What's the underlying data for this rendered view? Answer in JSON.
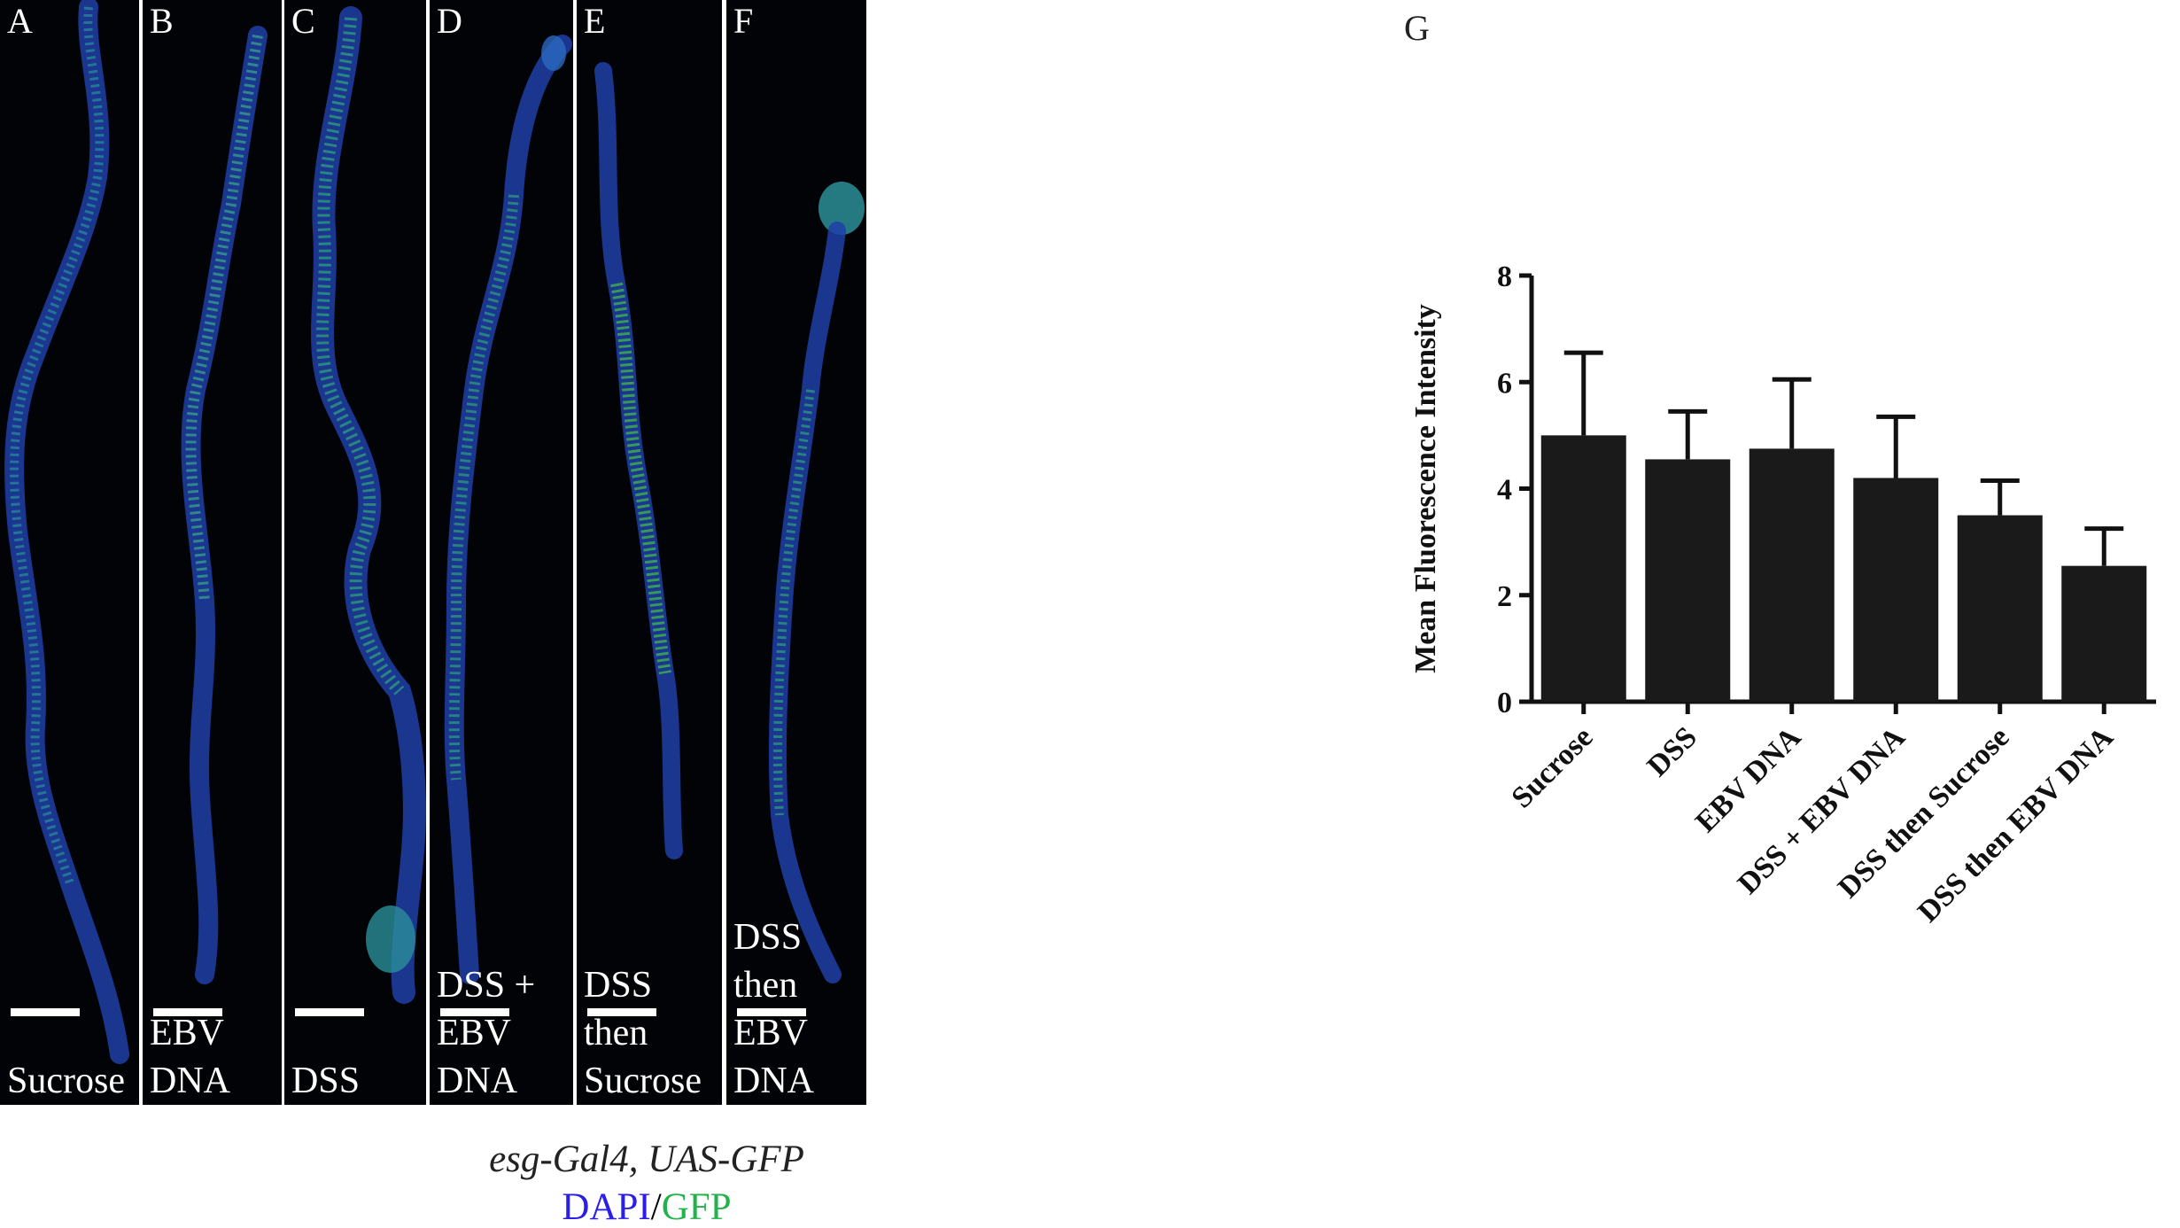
{
  "panels": [
    {
      "letter": "A",
      "label_lines": [
        "Sucrose"
      ]
    },
    {
      "letter": "B",
      "label_lines": [
        "EBV DNA"
      ]
    },
    {
      "letter": "C",
      "label_lines": [
        "DSS"
      ]
    },
    {
      "letter": "D",
      "label_lines": [
        "DSS +",
        "EBV DNA"
      ]
    },
    {
      "letter": "E",
      "label_lines": [
        "DSS then",
        "Sucrose"
      ]
    },
    {
      "letter": "F",
      "label_lines": [
        "DSS then",
        "EBV DNA"
      ]
    }
  ],
  "caption": {
    "genotype": "esg-Gal4, UAS-GFP",
    "stain_dapi": "DAPI",
    "stain_sep": "/",
    "stain_gfp": "GFP"
  },
  "colors": {
    "dapi": "#2b1ee6",
    "gfp": "#22b24a",
    "panel_bg": "#020306",
    "bar": "#1a1a1a"
  },
  "panel_g_letter": "G",
  "chart_data": {
    "type": "bar",
    "categories": [
      "Sucrose",
      "DSS",
      "EBV DNA",
      "DSS + EBV DNA",
      "DSS then Sucrose",
      "DSS then EBV DNA"
    ],
    "values": [
      5.0,
      4.55,
      4.75,
      4.2,
      3.5,
      2.55
    ],
    "error_upper": [
      6.55,
      5.45,
      6.05,
      5.35,
      4.15,
      3.25
    ],
    "ylabel": "Mean Fluorescence Intensity",
    "xlabel": "",
    "ylim": [
      0,
      8
    ],
    "yticks": [
      0,
      2,
      4,
      6,
      8
    ],
    "grid": false,
    "error_bars": "upper"
  }
}
